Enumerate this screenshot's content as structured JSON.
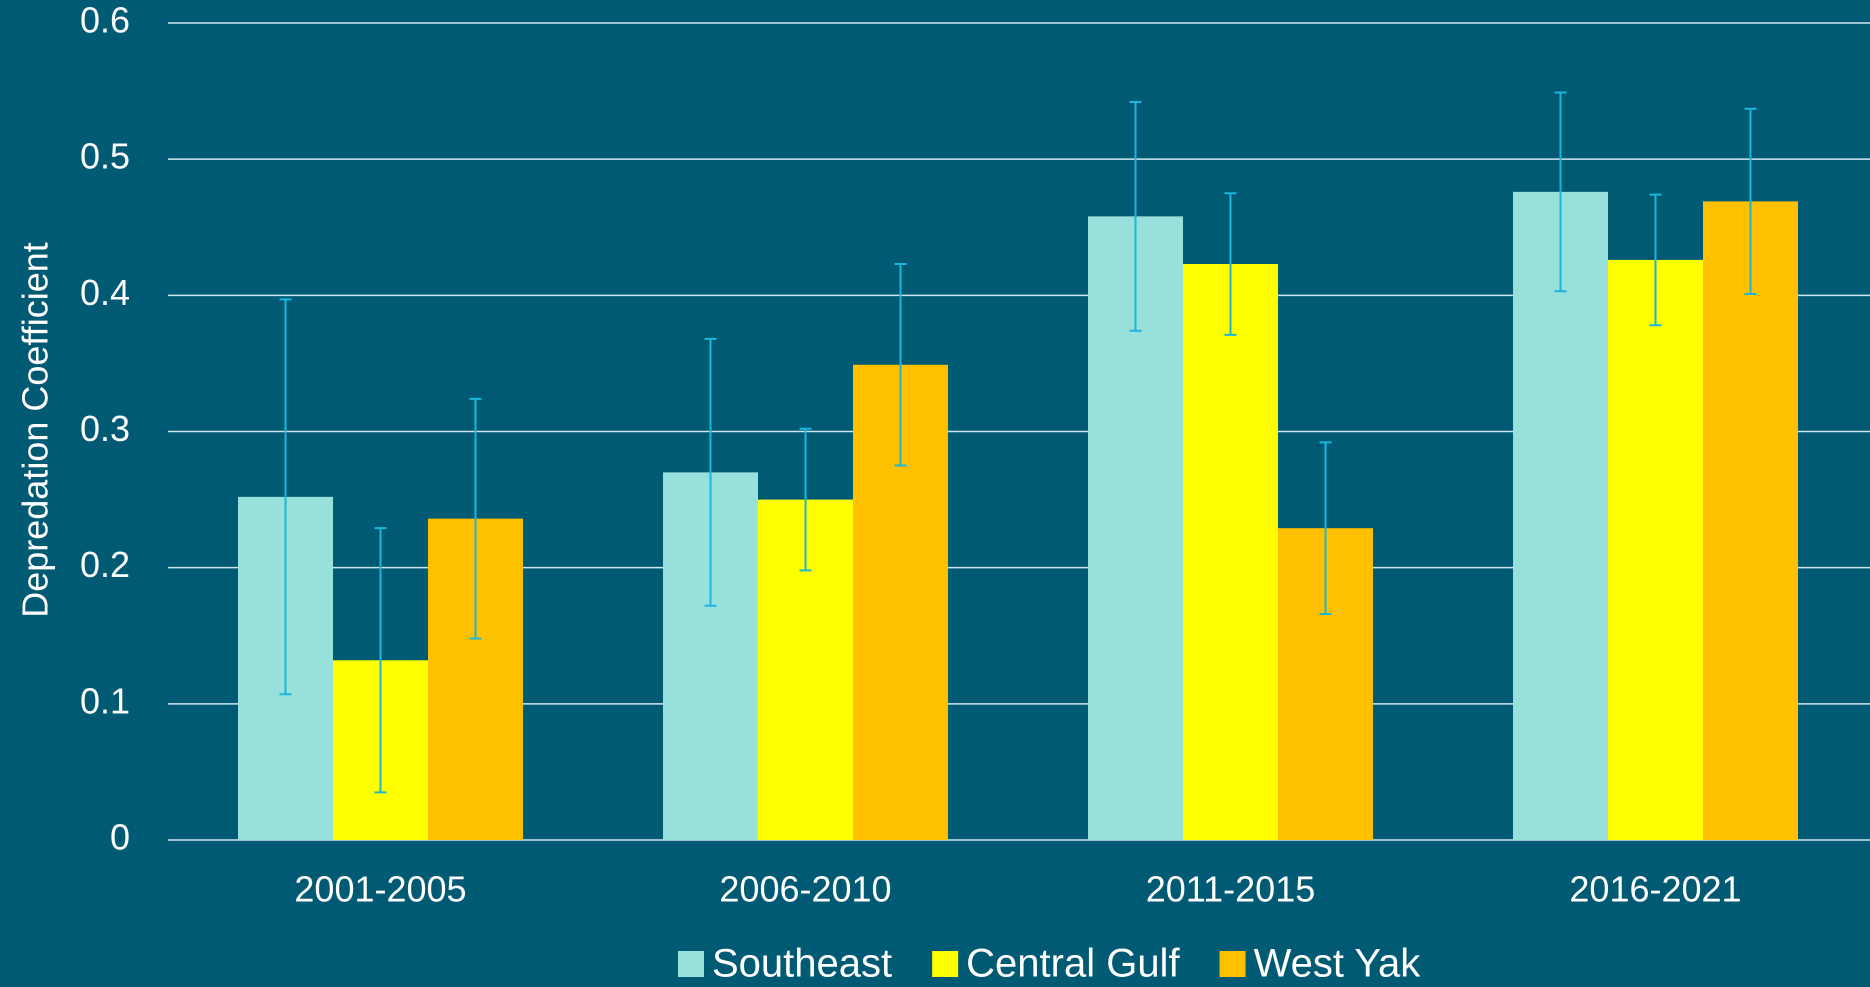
{
  "chart_data": {
    "type": "bar",
    "y_label": "Depredation Coefficient",
    "categories": [
      "2001-2005",
      "2006-2010",
      "2011-2015",
      "2016-2021"
    ],
    "series": [
      {
        "name": "Southeast",
        "color": "#98e0dc",
        "values": [
          0.252,
          0.27,
          0.458,
          0.476
        ],
        "errors": [
          0.145,
          0.098,
          0.084,
          0.073
        ]
      },
      {
        "name": "Central Gulf",
        "color": "#ffff00",
        "values": [
          0.132,
          0.25,
          0.423,
          0.426
        ],
        "errors": [
          0.097,
          0.052,
          0.052,
          0.048
        ]
      },
      {
        "name": "West Yak",
        "color": "#ffc000",
        "values": [
          0.236,
          0.349,
          0.229,
          0.469
        ],
        "errors": [
          0.088,
          0.074,
          0.063,
          0.068
        ]
      }
    ],
    "error_color": "#1ab6dc",
    "ylim": [
      0,
      0.6
    ],
    "yticks": [
      0,
      0.1,
      0.2,
      0.3,
      0.4,
      0.5,
      0.6
    ],
    "grid": true,
    "legend": "bottom"
  }
}
